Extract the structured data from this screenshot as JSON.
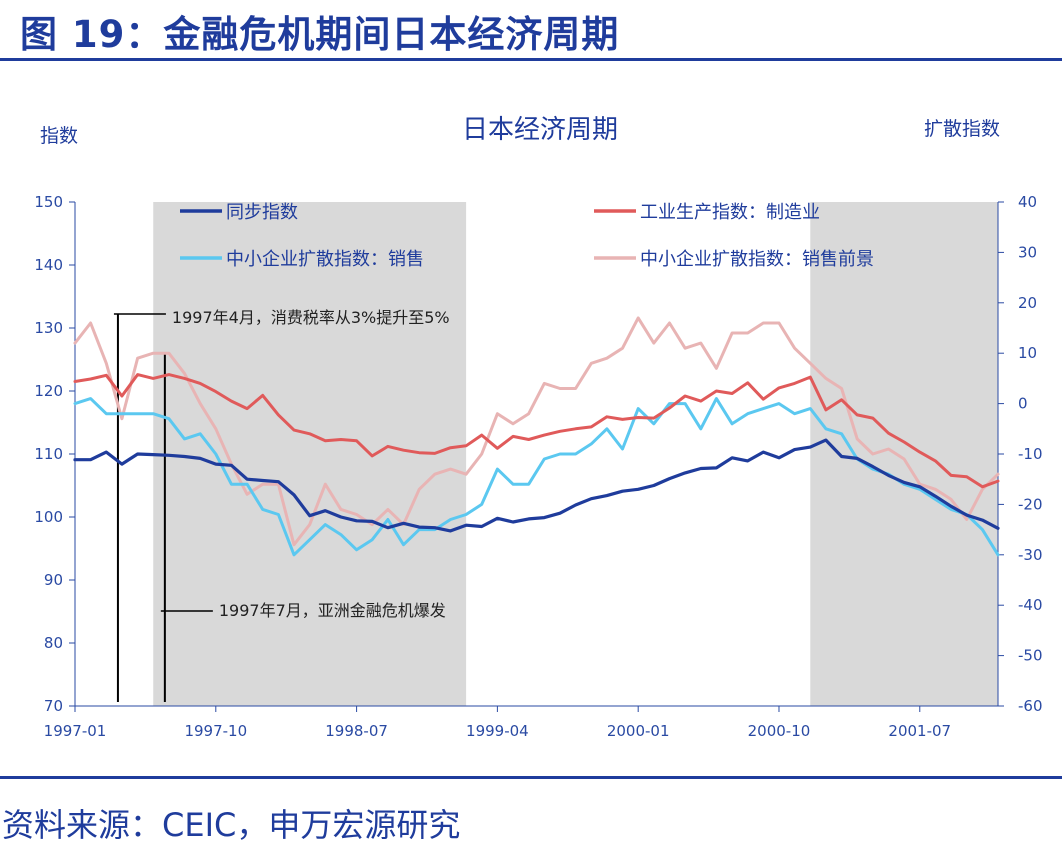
{
  "header": {
    "title": "图 19：金融危机期间日本经济周期"
  },
  "footer": {
    "source": "资料来源：CEIC，申万宏源研究"
  },
  "colors": {
    "brand": "#1f3c9c",
    "shade": "#d9d9d9"
  },
  "chart_data": {
    "type": "line",
    "title": "日本经济周期",
    "ylabel_left": "指数",
    "ylabel_right": "扩散指数",
    "ylim_left": [
      70,
      150
    ],
    "ylim_right": [
      -60,
      40
    ],
    "yticks_left": [
      "70",
      "80",
      "90",
      "100",
      "110",
      "120",
      "130",
      "140",
      "150"
    ],
    "yticks_right": [
      "-60",
      "-50",
      "-40",
      "-30",
      "-20",
      "-10",
      "0",
      "10",
      "20",
      "30",
      "40"
    ],
    "x_start": "1997-01",
    "x_count": 60,
    "xticks": [
      {
        "index": 0,
        "label": "1997-01"
      },
      {
        "index": 9,
        "label": "1997-10"
      },
      {
        "index": 18,
        "label": "1998-07"
      },
      {
        "index": 27,
        "label": "1999-04"
      },
      {
        "index": 36,
        "label": "2000-01"
      },
      {
        "index": 45,
        "label": "2000-10"
      },
      {
        "index": 54,
        "label": "2001-07"
      }
    ],
    "recessions": [
      {
        "start": 5,
        "end": 25
      },
      {
        "start": 47,
        "end": 60
      }
    ],
    "series": [
      {
        "name": "同步指数",
        "axis": "left",
        "color": "#1f3c9c",
        "width": 3.2,
        "values": [
          109.1,
          109.1,
          110.3,
          108.4,
          110.0,
          109.9,
          109.8,
          109.6,
          109.3,
          108.4,
          108.2,
          106.0,
          105.8,
          105.6,
          103.5,
          100.2,
          101.0,
          100.0,
          99.4,
          99.3,
          98.3,
          99.0,
          98.4,
          98.3,
          97.8,
          98.7,
          98.5,
          99.8,
          99.2,
          99.7,
          99.9,
          100.6,
          101.9,
          102.9,
          103.4,
          104.1,
          104.4,
          105.0,
          106.1,
          107.0,
          107.7,
          107.8,
          109.4,
          108.9,
          110.3,
          109.4,
          110.7,
          111.1,
          112.2,
          109.6,
          109.3,
          108.0,
          106.6,
          105.5,
          104.8,
          103.3,
          101.7,
          100.3,
          99.5,
          98.2
        ]
      },
      {
        "name": "工业生产指数：制造业",
        "axis": "left",
        "color": "#e05a5a",
        "width": 3,
        "values": [
          121.5,
          121.9,
          122.5,
          119.2,
          122.6,
          122.0,
          122.6,
          122.0,
          121.2,
          119.9,
          118.4,
          117.2,
          119.3,
          116.2,
          113.8,
          113.2,
          112.1,
          112.3,
          112.1,
          109.7,
          111.2,
          110.6,
          110.2,
          110.1,
          111.0,
          111.3,
          113.0,
          110.9,
          112.8,
          112.3,
          113.0,
          113.6,
          114.0,
          114.3,
          115.9,
          115.5,
          115.8,
          115.7,
          117.3,
          119.2,
          118.4,
          120.0,
          119.6,
          121.3,
          118.7,
          120.5,
          121.2,
          122.2,
          117.0,
          118.6,
          116.2,
          115.7,
          113.3,
          111.9,
          110.3,
          108.9,
          106.6,
          106.4,
          104.8,
          105.7
        ]
      },
      {
        "name": "中小企业扩散指数：销售",
        "axis": "right",
        "color": "#5bc8f0",
        "width": 3,
        "values": [
          0,
          1,
          -2,
          -2,
          -2,
          -2,
          -3,
          -7,
          -6,
          -10,
          -16,
          -16,
          -21,
          -22,
          -30,
          -27,
          -24,
          -26,
          -29,
          -27,
          -23,
          -28,
          -25,
          -25,
          -23,
          -22,
          -20,
          -13,
          -16,
          -16,
          -11,
          -10,
          -10,
          -8,
          -5,
          -9,
          -1,
          -4,
          0,
          0,
          -5,
          1,
          -4,
          -2,
          -1,
          0,
          -2,
          -1,
          -5,
          -6,
          -11,
          -13,
          -14,
          -16,
          -17,
          -19,
          -21,
          -22,
          -25,
          -30
        ]
      },
      {
        "name": "中小企业扩散指数：销售前景",
        "axis": "right",
        "color": "#e8b4b4",
        "width": 3,
        "values": [
          12,
          16,
          8,
          -3,
          9,
          10,
          10,
          6,
          0,
          -5,
          -12,
          -18,
          -16,
          -16,
          -28,
          -24,
          -16,
          -21,
          -22,
          -24,
          -21,
          -24,
          -17,
          -14,
          -13,
          -14,
          -10,
          -2,
          -4,
          -2,
          4,
          3,
          3,
          8,
          9,
          11,
          17,
          12,
          16,
          11,
          12,
          7,
          14,
          14,
          16,
          16,
          11,
          8,
          5,
          3,
          -7,
          -10,
          -9,
          -11,
          -16,
          -17,
          -19,
          -23,
          -17,
          -14
        ]
      }
    ],
    "annotations": [
      {
        "text": "1997年4月，消费税率从3%提升至5%",
        "index": 3
      },
      {
        "text": "1997年7月，亚洲金融危机爆发",
        "index": 6
      }
    ],
    "legend": "top, two columns"
  }
}
